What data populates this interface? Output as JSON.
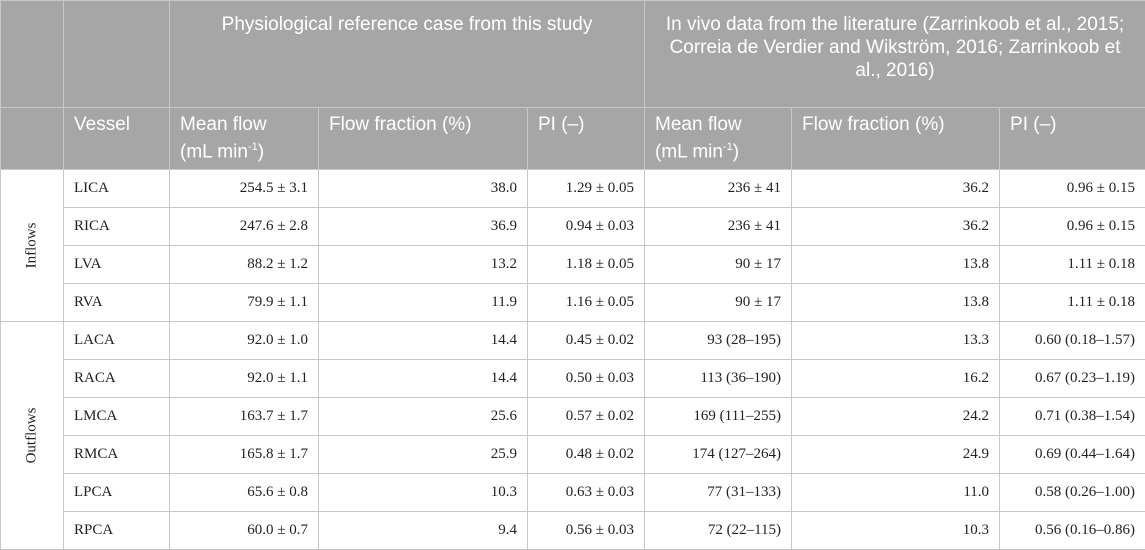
{
  "header": {
    "vessel": "Vessel",
    "group_this": "Physiological reference case from this study",
    "group_lit": "In vivo data from the literature (Zarrinkoob et al., 2015; Correia de Verdier and Wikström, 2016; Zarrinkoob et al., 2016)",
    "mean_flow_text": "Mean flow",
    "mean_flow_unit": "(mL min",
    "mean_flow_sup": "-1",
    "mean_flow_close": ")",
    "flow_fraction": "Flow fraction (%)",
    "pi": "PI (–)"
  },
  "groups": {
    "inflows": "Inflows",
    "outflows": "Outflows"
  },
  "rows": [
    {
      "vessel": "LICA",
      "mean": "254.5 ± 3.1",
      "frac": "38.0",
      "pi": "1.29 ± 0.05",
      "lit_mean": "236 ± 41",
      "lit_frac": "36.2",
      "lit_pi": "0.96 ± 0.15"
    },
    {
      "vessel": "RICA",
      "mean": "247.6 ± 2.8",
      "frac": "36.9",
      "pi": "0.94 ± 0.03",
      "lit_mean": "236 ± 41",
      "lit_frac": "36.2",
      "lit_pi": "0.96 ± 0.15"
    },
    {
      "vessel": "LVA",
      "mean": "88.2 ± 1.2",
      "frac": "13.2",
      "pi": "1.18 ± 0.05",
      "lit_mean": "90 ± 17",
      "lit_frac": "13.8",
      "lit_pi": "1.11 ± 0.18"
    },
    {
      "vessel": "RVA",
      "mean": "79.9 ± 1.1",
      "frac": "11.9",
      "pi": "1.16 ± 0.05",
      "lit_mean": "90 ± 17",
      "lit_frac": "13.8",
      "lit_pi": "1.11 ± 0.18"
    },
    {
      "vessel": "LACA",
      "mean": "92.0 ± 1.0",
      "frac": "14.4",
      "pi": "0.45 ± 0.02",
      "lit_mean": "93 (28–195)",
      "lit_frac": "13.3",
      "lit_pi": "0.60 (0.18–1.57)"
    },
    {
      "vessel": "RACA",
      "mean": "92.0 ± 1.1",
      "frac": "14.4",
      "pi": "0.50 ± 0.03",
      "lit_mean": "113 (36–190)",
      "lit_frac": "16.2",
      "lit_pi": "0.67 (0.23–1.19)"
    },
    {
      "vessel": "LMCA",
      "mean": "163.7 ± 1.7",
      "frac": "25.6",
      "pi": "0.57 ± 0.02",
      "lit_mean": "169 (111–255)",
      "lit_frac": "24.2",
      "lit_pi": "0.71 (0.38–1.54)"
    },
    {
      "vessel": "RMCA",
      "mean": "165.8 ± 1.7",
      "frac": "25.9",
      "pi": "0.48 ± 0.02",
      "lit_mean": "174 (127–264)",
      "lit_frac": "24.9",
      "lit_pi": "0.69 (0.44–1.64)"
    },
    {
      "vessel": "LPCA",
      "mean": "65.6 ± 0.8",
      "frac": "10.3",
      "pi": "0.63 ± 0.03",
      "lit_mean": "77 (31–133)",
      "lit_frac": "11.0",
      "lit_pi": "0.58 (0.26–1.00)"
    },
    {
      "vessel": "RPCA",
      "mean": "60.0 ± 0.7",
      "frac": "9.4",
      "pi": "0.56 ± 0.03",
      "lit_mean": "72 (22–115)",
      "lit_frac": "10.3",
      "lit_pi": "0.56 (0.16–0.86)"
    }
  ]
}
